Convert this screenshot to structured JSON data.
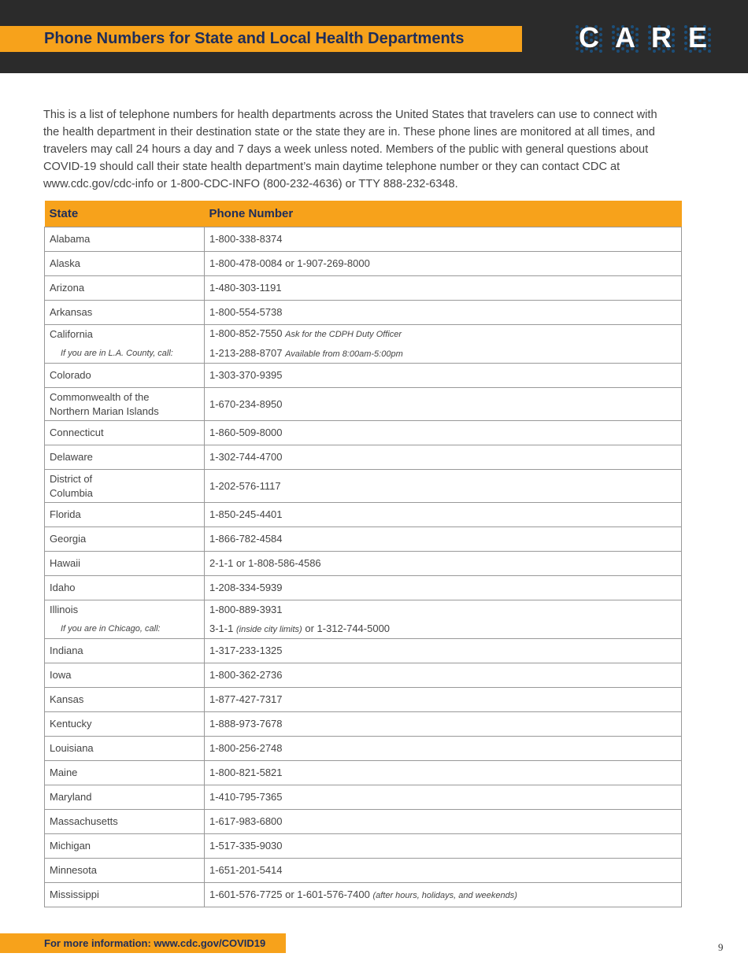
{
  "header": {
    "title": "Phone Numbers for State and Local Health Departments",
    "logo": [
      "C",
      "A",
      "R",
      "E"
    ]
  },
  "intro": "This is a list of telephone numbers for health departments across the United States that travelers can use to connect with the health department in their destination state or the state they are in. These phone lines are monitored at all times, and travelers may call 24 hours a day and 7 days a week unless noted. Members of the public with general questions about COVID-19 should call their state health department’s main daytime telephone number or they can contact CDC at www.cdc.gov/cdc-info or 1-800-CDC-INFO (800-232-4636) or TTY 888-232-6348.",
  "table": {
    "columns": [
      "State",
      "Phone Number"
    ],
    "rows": [
      {
        "state": "Alabama",
        "phone": "1-800-338-8374"
      },
      {
        "state": "Alaska",
        "phone": "1-800-478-0084 or 1-907-269-8000"
      },
      {
        "state": "Arizona",
        "phone": "1-480-303-1191"
      },
      {
        "state": "Arkansas",
        "phone": "1-800-554-5738"
      },
      {
        "state": "California",
        "phone": "1-800-852-7550",
        "phone_note": "Ask for the CDPH Duty Officer",
        "sub_label": "If you are in  L.A. County, call:",
        "sub_phone": "1-213-288-8707",
        "sub_note": "Available from 8:00am-5:00pm"
      },
      {
        "state": "Colorado",
        "phone": "1-303-370-9395"
      },
      {
        "state_lines": [
          "Commonwealth of the",
          "Northern Marian Islands"
        ],
        "phone": "1-670-234-8950"
      },
      {
        "state": "Connecticut",
        "phone": "1-860-509-8000"
      },
      {
        "state": "Delaware",
        "phone": "1-302-744-4700"
      },
      {
        "state_lines": [
          "District of",
          "Columbia"
        ],
        "phone": "1-202-576-1117"
      },
      {
        "state": "Florida",
        "phone": "1-850-245-4401"
      },
      {
        "state": "Georgia",
        "phone": "1-866-782-4584"
      },
      {
        "state": "Hawaii",
        "phone": "2-1-1 or 1-808-586-4586"
      },
      {
        "state": "Idaho",
        "phone": "1-208-334-5939"
      },
      {
        "state": "Illinois",
        "phone": "1-800-889-3931",
        "sub_label": "If you are in Chicago, call:",
        "sub_phone": "3-1-1",
        "sub_note": "(inside city limits)",
        "sub_phone_after": "or 1-312-744-5000"
      },
      {
        "state": "Indiana",
        "phone": "1-317-233-1325"
      },
      {
        "state": "Iowa",
        "phone": "1-800-362-2736"
      },
      {
        "state": "Kansas",
        "phone": "1-877-427-7317"
      },
      {
        "state": "Kentucky",
        "phone": "1-888-973-7678"
      },
      {
        "state": "Louisiana",
        "phone": "1-800-256-2748"
      },
      {
        "state": "Maine",
        "phone": "1-800-821-5821"
      },
      {
        "state": "Maryland",
        "phone": "1-410-795-7365"
      },
      {
        "state": "Massachusetts",
        "phone": "1-617-983-6800"
      },
      {
        "state": "Michigan",
        "phone": "1-517-335-9030"
      },
      {
        "state": "Minnesota",
        "phone": "1-651-201-5414"
      },
      {
        "state": "Mississippi",
        "phone": "1-601-576-7725 or 1-601-576-7400",
        "phone_note": "(after hours, holidays, and weekends)"
      }
    ]
  },
  "footer": {
    "text": "For more information: www.cdc.gov/COVID19",
    "page": "9"
  }
}
